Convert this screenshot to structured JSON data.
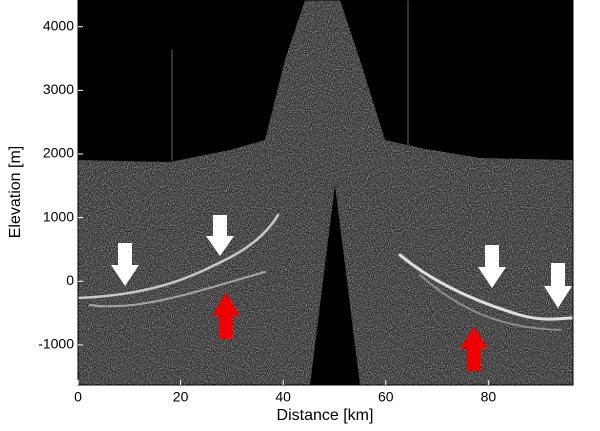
{
  "chart_data": {
    "type": "image",
    "x_label": "Distance [km]",
    "y_label": "Elevation [m]",
    "xlim": [
      0,
      96.5
    ],
    "ylim": [
      -1630,
      4420
    ],
    "xticks": [
      0,
      20,
      40,
      60,
      80
    ],
    "yticks": [
      -1000,
      0,
      1000,
      2000,
      3000,
      4000
    ]
  }
}
